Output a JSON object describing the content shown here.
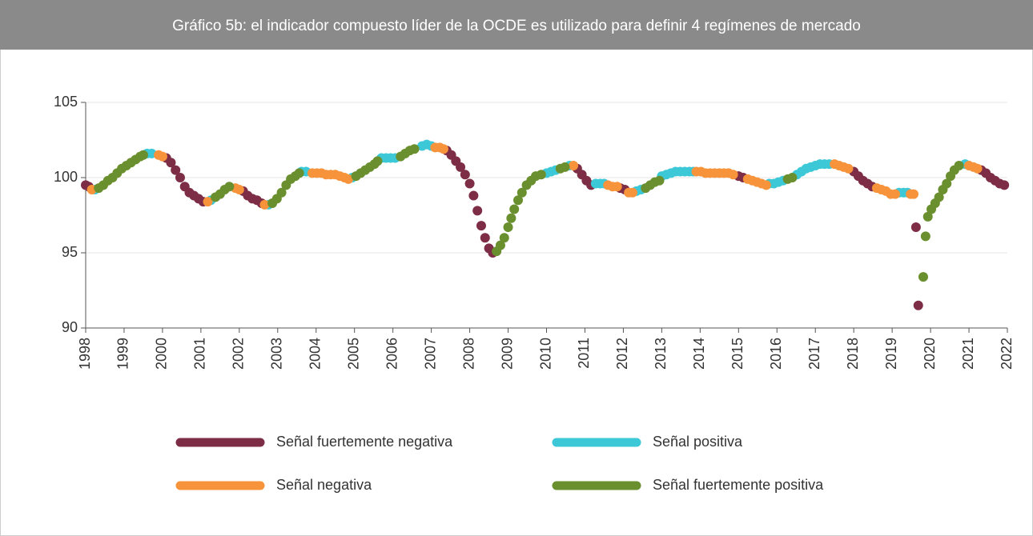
{
  "chart_data": {
    "type": "scatter",
    "title": "Gráfico 5b: el indicador compuesto líder de la OCDE es utilizado para definir 4 regímenes de mercado",
    "xlim": [
      1998,
      2022
    ],
    "xticks": [
      1998,
      1999,
      2000,
      2001,
      2002,
      2003,
      2004,
      2005,
      2006,
      2007,
      2008,
      2009,
      2010,
      2011,
      2012,
      2013,
      2014,
      2015,
      2016,
      2017,
      2018,
      2019,
      2020,
      2021,
      2022
    ],
    "ylim": [
      90,
      105
    ],
    "yticks": [
      90,
      95,
      100,
      105
    ],
    "grid": true,
    "series": [
      {
        "name": "Señal fuertemente negativa",
        "color": "#7d2d45",
        "x": [
          1998.0,
          1998.08,
          2000.1,
          2000.22,
          2000.34,
          2000.46,
          2000.58,
          2000.7,
          2000.82,
          2000.94,
          2001.06,
          2002.1,
          2002.22,
          2002.34,
          2002.46,
          2002.58,
          2007.4,
          2007.52,
          2007.64,
          2007.76,
          2007.88,
          2008.0,
          2008.1,
          2008.2,
          2008.3,
          2008.4,
          2008.5,
          2008.6,
          2010.8,
          2010.92,
          2011.04,
          2011.16,
          2011.92,
          2012.04,
          2015.0,
          2015.12,
          2018.0,
          2018.12,
          2018.24,
          2018.36,
          2018.48,
          2019.62,
          2019.68,
          2021.32,
          2021.44,
          2021.56,
          2021.68,
          2021.8,
          2021.92
        ],
        "values": [
          99.5,
          99.4,
          101.3,
          101.0,
          100.5,
          100.0,
          99.4,
          99.0,
          98.8,
          98.6,
          98.4,
          99.1,
          98.8,
          98.6,
          98.5,
          98.3,
          101.8,
          101.5,
          101.1,
          100.7,
          100.2,
          99.6,
          98.8,
          97.8,
          96.8,
          96.0,
          95.3,
          95.0,
          100.6,
          100.2,
          99.8,
          99.5,
          99.3,
          99.2,
          100.1,
          100.0,
          100.4,
          100.1,
          99.8,
          99.6,
          99.4,
          96.7,
          91.5,
          100.5,
          100.3,
          100.0,
          99.8,
          99.6,
          99.5
        ]
      },
      {
        "name": "Señal positiva",
        "color": "#3cc8d6",
        "x": [
          1998.24,
          1999.6,
          1999.72,
          2001.26,
          2002.76,
          2003.62,
          2003.74,
          2004.94,
          2005.7,
          2005.82,
          2005.94,
          2006.06,
          2006.76,
          2006.88,
          2007.0,
          2010.0,
          2010.12,
          2010.24,
          2010.6,
          2011.28,
          2011.4,
          2011.5,
          2012.34,
          2012.46,
          2013.0,
          2013.12,
          2013.24,
          2013.36,
          2013.48,
          2013.6,
          2013.72,
          2013.82,
          2015.8,
          2015.92,
          2016.04,
          2016.16,
          2016.52,
          2016.64,
          2016.76,
          2016.88,
          2017.0,
          2017.12,
          2017.24,
          2017.36,
          2019.18,
          2019.3,
          2019.4,
          2020.9
        ],
        "values": [
          99.2,
          101.6,
          101.6,
          98.5,
          98.2,
          100.4,
          100.4,
          100.0,
          101.3,
          101.3,
          101.3,
          101.3,
          102.1,
          102.2,
          102.1,
          100.3,
          100.4,
          100.5,
          100.8,
          99.6,
          99.6,
          99.6,
          99.1,
          99.2,
          100.1,
          100.2,
          100.3,
          100.4,
          100.4,
          100.4,
          100.4,
          100.4,
          99.6,
          99.6,
          99.7,
          99.8,
          100.2,
          100.4,
          100.6,
          100.7,
          100.8,
          100.9,
          100.9,
          100.9,
          99.0,
          99.0,
          99.0,
          100.9
        ]
      },
      {
        "name": "Señal negativa",
        "color": "#f7933b",
        "x": [
          1998.16,
          1999.9,
          2000.0,
          2001.18,
          2001.9,
          2002.0,
          2002.66,
          2003.9,
          2004.02,
          2004.14,
          2004.26,
          2004.38,
          2004.5,
          2004.62,
          2004.74,
          2004.84,
          2007.1,
          2007.22,
          2007.32,
          2010.7,
          2011.6,
          2011.72,
          2011.84,
          2012.14,
          2012.24,
          2013.9,
          2014.02,
          2014.14,
          2014.26,
          2014.38,
          2014.5,
          2014.62,
          2014.74,
          2014.86,
          2015.24,
          2015.36,
          2015.48,
          2015.6,
          2015.72,
          2017.5,
          2017.62,
          2017.74,
          2017.86,
          2018.6,
          2018.72,
          2018.84,
          2018.96,
          2019.08,
          2019.48,
          2019.56,
          2021.0,
          2021.12,
          2021.22
        ],
        "values": [
          99.2,
          101.5,
          101.4,
          98.4,
          99.3,
          99.2,
          98.2,
          100.3,
          100.3,
          100.3,
          100.2,
          100.2,
          100.2,
          100.1,
          100.0,
          99.9,
          102.0,
          102.0,
          101.9,
          100.8,
          99.5,
          99.4,
          99.4,
          99.0,
          99.0,
          100.4,
          100.4,
          100.3,
          100.3,
          100.3,
          100.3,
          100.3,
          100.3,
          100.2,
          99.9,
          99.8,
          99.7,
          99.6,
          99.5,
          100.9,
          100.8,
          100.7,
          100.6,
          99.3,
          99.2,
          99.1,
          98.9,
          98.9,
          98.9,
          98.9,
          100.8,
          100.7,
          100.6
        ]
      },
      {
        "name": "Señal fuertemente positiva",
        "color": "#6a8f2e",
        "x": [
          1998.34,
          1998.46,
          1998.58,
          1998.7,
          1998.82,
          1998.94,
          1999.06,
          1999.18,
          1999.3,
          1999.42,
          1999.5,
          2001.38,
          2001.5,
          2001.62,
          2001.74,
          2002.86,
          2002.98,
          2003.1,
          2003.22,
          2003.34,
          2003.46,
          2003.56,
          2005.04,
          2005.16,
          2005.28,
          2005.4,
          2005.52,
          2005.6,
          2006.2,
          2006.32,
          2006.44,
          2006.56,
          2008.7,
          2008.8,
          2008.9,
          2009.0,
          2009.08,
          2009.16,
          2009.26,
          2009.36,
          2009.48,
          2009.6,
          2009.72,
          2009.86,
          2010.36,
          2010.48,
          2012.58,
          2012.7,
          2012.82,
          2012.94,
          2016.28,
          2016.4,
          2019.81,
          2019.87,
          2019.93,
          2020.02,
          2020.12,
          2020.22,
          2020.32,
          2020.42,
          2020.52,
          2020.62,
          2020.74
        ],
        "values": [
          99.3,
          99.5,
          99.8,
          100.0,
          100.3,
          100.6,
          100.8,
          101.0,
          101.2,
          101.4,
          101.5,
          98.7,
          98.9,
          99.2,
          99.4,
          98.3,
          98.6,
          99.0,
          99.5,
          99.9,
          100.1,
          100.3,
          100.1,
          100.3,
          100.5,
          100.7,
          100.9,
          101.1,
          101.4,
          101.6,
          101.8,
          101.9,
          95.1,
          95.5,
          96.0,
          96.7,
          97.3,
          97.9,
          98.5,
          99.0,
          99.5,
          99.8,
          100.1,
          100.2,
          100.6,
          100.7,
          99.3,
          99.5,
          99.7,
          99.8,
          99.9,
          100.0,
          93.4,
          96.1,
          97.4,
          97.9,
          98.3,
          98.7,
          99.2,
          99.6,
          100.1,
          100.5,
          100.8
        ]
      }
    ]
  }
}
